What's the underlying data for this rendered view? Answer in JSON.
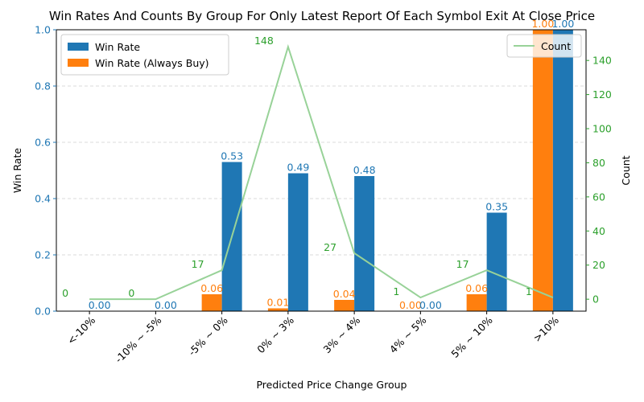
{
  "chart_data": {
    "type": "bar",
    "title": "Win Rates And Counts By Group For Only Latest Report Of Each Symbol Exit At Close Price",
    "xlabel": "Predicted Price Change Group",
    "ylabel": "Win Rate",
    "y2label": "Count",
    "categories": [
      "<-10%",
      "-10% ~ -5%",
      "-5% ~ 0%",
      "0% ~ 3%",
      "3% ~ 4%",
      "4% ~ 5%",
      "5% ~ 10%",
      ">10%"
    ],
    "ylim": [
      0,
      1.0
    ],
    "yticks": [
      "0.0",
      "0.2",
      "0.4",
      "0.6",
      "0.8",
      "1.0"
    ],
    "y2lim": [
      -7,
      158
    ],
    "y2ticks": [
      "0",
      "20",
      "40",
      "60",
      "80",
      "100",
      "120",
      "140"
    ],
    "grid": "y-dashed",
    "series": [
      {
        "name": "Win Rate",
        "kind": "bar",
        "color": "#1f77b4",
        "values": [
          0.0,
          0.0,
          0.53,
          0.49,
          0.48,
          0.0,
          0.35,
          1.0
        ],
        "labels": [
          "0.00",
          "0.00",
          "0.53",
          "0.49",
          "0.48",
          "0.00",
          "0.35",
          "1.00"
        ]
      },
      {
        "name": "Win Rate (Always Buy)",
        "kind": "bar",
        "color": "#ff7f0e",
        "values": [
          null,
          null,
          0.06,
          0.01,
          0.04,
          0.0,
          0.06,
          1.0
        ],
        "labels": [
          "",
          "",
          "0.06",
          "0.01",
          "0.04",
          "0.00",
          "0.06",
          "1.00"
        ]
      },
      {
        "name": "Count",
        "kind": "line",
        "axis": "right",
        "color": "#98d298",
        "label_color": "#2ca02c",
        "values": [
          0,
          0,
          17,
          148,
          27,
          1,
          17,
          1
        ],
        "labels": [
          "0",
          "0",
          "17",
          "148",
          "27",
          "1",
          "17",
          "1"
        ]
      }
    ],
    "legend_left_position": "upper-left",
    "legend_right_position": "upper-right",
    "axis_colors": {
      "left": "#1f77b4",
      "right": "#2ca02c"
    }
  }
}
